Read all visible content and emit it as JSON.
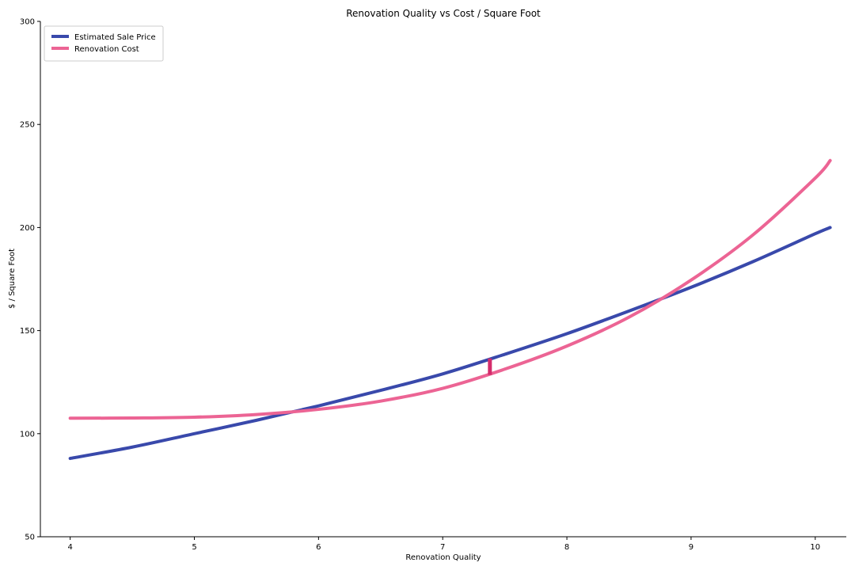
{
  "chart_data": {
    "type": "line",
    "title": "Renovation Quality vs Cost / Square Foot",
    "xlabel": "Renovation Quality",
    "ylabel": "$ / Square Foot",
    "xlim": [
      3.76,
      10.25
    ],
    "ylim": [
      50,
      300
    ],
    "x_ticks": [
      4,
      5,
      6,
      7,
      8,
      9,
      10
    ],
    "y_ticks": [
      50,
      100,
      150,
      200,
      250,
      300
    ],
    "legend_position": "top-left",
    "series": [
      {
        "name": "Estimated Sale Price",
        "color": "#3949ab",
        "x": [
          4.0,
          4.5,
          5.0,
          5.5,
          6.0,
          6.5,
          7.0,
          7.5,
          8.0,
          8.5,
          9.0,
          9.5,
          10.0,
          10.12
        ],
        "y": [
          88.0,
          93.5,
          100.0,
          106.5,
          113.5,
          121.0,
          129.0,
          138.5,
          148.5,
          159.5,
          171.0,
          183.5,
          197.0,
          200.0
        ]
      },
      {
        "name": "Renovation Cost",
        "color": "#ec6494",
        "x": [
          4.0,
          4.5,
          5.0,
          5.5,
          6.0,
          6.5,
          7.0,
          7.5,
          8.0,
          8.5,
          9.0,
          9.5,
          10.0,
          10.12
        ],
        "y": [
          107.5,
          107.6,
          108.0,
          109.3,
          111.8,
          115.8,
          122.0,
          131.3,
          142.5,
          156.5,
          174.5,
          196.5,
          224.0,
          232.5
        ]
      }
    ],
    "annotation": {
      "type": "gap-marker",
      "color": "#d42c6c",
      "x": 7.38,
      "y_from": 128.5,
      "y_to": 136.5
    }
  }
}
